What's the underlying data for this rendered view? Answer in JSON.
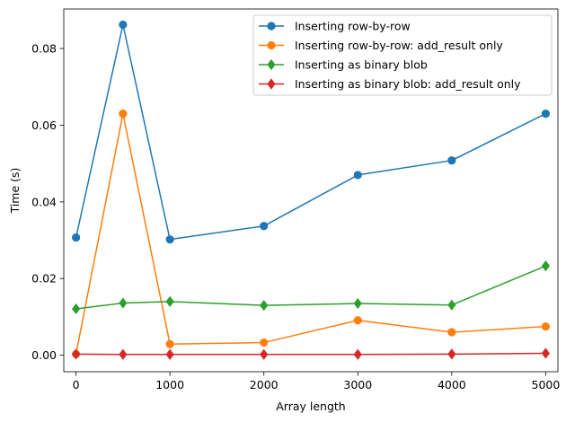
{
  "chart_data": {
    "type": "line",
    "xlabel": "Array length",
    "ylabel": "Time (s)",
    "xlim": [
      -130,
      5130
    ],
    "ylim": [
      -0.0043,
      0.0903
    ],
    "xticks": [
      0,
      1000,
      2000,
      3000,
      4000,
      5000
    ],
    "yticks": [
      0.0,
      0.02,
      0.04,
      0.06,
      0.08
    ],
    "ytick_labels": [
      "0.00",
      "0.02",
      "0.04",
      "0.06",
      "0.08"
    ],
    "grid": false,
    "legend_position": "top-right",
    "x": [
      0,
      500,
      1000,
      2000,
      3000,
      4000,
      5000
    ],
    "series": [
      {
        "name": "Inserting row-by-row",
        "color": "#1f77b4",
        "marker": "circle",
        "values": [
          0.0307,
          0.0862,
          0.0302,
          0.0337,
          0.047,
          0.0508,
          0.063
        ]
      },
      {
        "name": "Inserting row-by-row: add_result only",
        "color": "#ff7f0e",
        "marker": "circle",
        "values": [
          0.0003,
          0.063,
          0.0029,
          0.0033,
          0.0091,
          0.006,
          0.0075
        ]
      },
      {
        "name": "Inserting as binary blob",
        "color": "#2ca02c",
        "marker": "diamond",
        "values": [
          0.0121,
          0.0136,
          0.014,
          0.013,
          0.0135,
          0.0131,
          0.0233
        ]
      },
      {
        "name": "Inserting as binary blob: add_result only",
        "color": "#d62728",
        "marker": "diamond",
        "values": [
          0.0003,
          0.0002,
          0.0002,
          0.0002,
          0.0002,
          0.0003,
          0.0005
        ]
      }
    ]
  }
}
